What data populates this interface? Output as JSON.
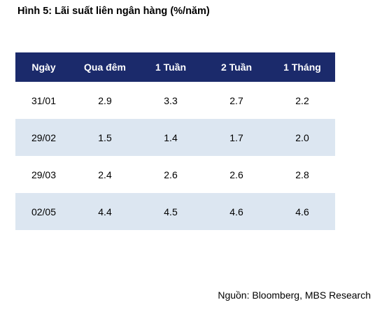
{
  "figure": {
    "title": "Hình 5: Lãi suất liên ngân hàng (%/năm)"
  },
  "table": {
    "headers": [
      "Ngày",
      "Qua đêm",
      "1 Tuần",
      "2 Tuần",
      "1 Tháng"
    ],
    "rows": [
      [
        "31/01",
        "2.9",
        "3.3",
        "2.7",
        "2.2"
      ],
      [
        "29/02",
        "1.5",
        "1.4",
        "1.7",
        "2.0"
      ],
      [
        "29/03",
        "2.4",
        "2.6",
        "2.6",
        "2.8"
      ],
      [
        "02/05",
        "4.4",
        "4.5",
        "4.6",
        "4.6"
      ]
    ],
    "header_color": "#1b2a6b",
    "band_color": "#dce6f1"
  },
  "chart_data": {
    "type": "table",
    "title": "Hình 5: Lãi suất liên ngân hàng (%/năm)",
    "categories": [
      "31/01",
      "29/02",
      "29/03",
      "02/05"
    ],
    "series": [
      {
        "name": "Qua đêm",
        "values": [
          2.9,
          1.5,
          2.4,
          4.4
        ]
      },
      {
        "name": "1 Tuần",
        "values": [
          3.3,
          1.4,
          2.6,
          4.5
        ]
      },
      {
        "name": "2 Tuần",
        "values": [
          2.7,
          1.7,
          2.6,
          4.6
        ]
      },
      {
        "name": "1 Tháng",
        "values": [
          2.2,
          2.0,
          2.8,
          4.6
        ]
      }
    ]
  },
  "source": {
    "text": "Nguồn: Bloomberg, MBS Research"
  }
}
